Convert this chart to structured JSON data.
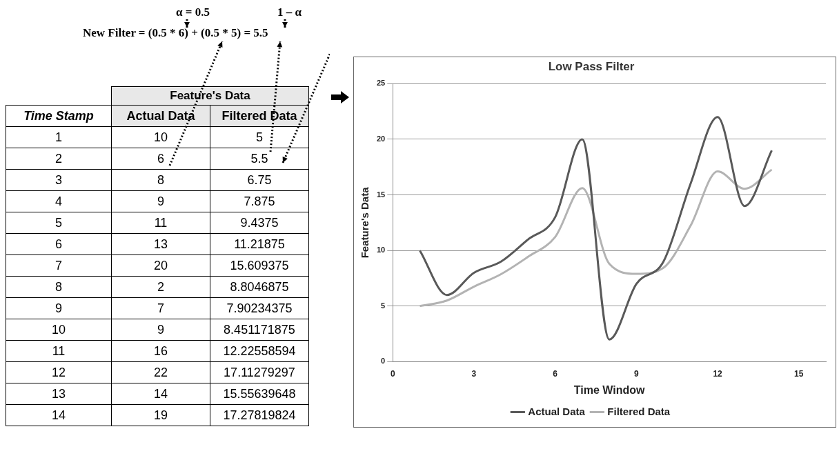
{
  "chart_data": [
    {
      "type": "heatmap",
      "title": "Feature's Data",
      "ylabel": "Time Stamp",
      "categories": [
        "Actual Data",
        "Filtered Data"
      ],
      "y_categories": [
        "1",
        "2",
        "3",
        "4",
        "5",
        "6",
        "7",
        "8",
        "9",
        "10",
        "11",
        "12",
        "13",
        "14"
      ],
      "cells": [
        [
          10,
          5
        ],
        [
          6,
          5.5
        ],
        [
          8,
          6.75
        ],
        [
          9,
          7.875
        ],
        [
          11,
          9.4375
        ],
        [
          13,
          11.21875
        ],
        [
          20,
          15.609375
        ],
        [
          2,
          8.8046875
        ],
        [
          7,
          7.90234375
        ],
        [
          9,
          8.451171875
        ],
        [
          16,
          12.22558594
        ],
        [
          22,
          17.11279297
        ],
        [
          14,
          15.55639648
        ],
        [
          19,
          17.27819824
        ]
      ],
      "data_labels": true,
      "annotations": [
        "α = 0.5",
        "1 – α",
        "New Filter = (0.5 * 6) + (0.5 * 5) = 5.5"
      ]
    },
    {
      "type": "line",
      "title": "Low Pass Filter",
      "xlabel": "Time Window",
      "ylabel": "Feature's Data",
      "x": [
        1,
        2,
        3,
        4,
        5,
        6,
        7,
        8,
        9,
        10,
        11,
        12,
        13,
        14
      ],
      "series": [
        {
          "name": "Actual Data",
          "color": "#595959",
          "values": [
            10,
            6,
            8,
            9,
            11,
            13,
            20,
            2,
            7,
            9,
            16,
            22,
            14,
            19
          ]
        },
        {
          "name": "Filtered Data",
          "color": "#b3b3b3",
          "values": [
            5,
            5.5,
            6.75,
            7.875,
            9.4375,
            11.21875,
            15.609375,
            8.8046875,
            7.90234375,
            8.451171875,
            12.22558594,
            17.11279297,
            15.55639648,
            17.27819824
          ]
        }
      ],
      "xlim": [
        0,
        16
      ],
      "xticks": [
        0,
        3,
        6,
        9,
        12,
        15
      ],
      "ylim": [
        0,
        25
      ],
      "yticks": [
        0,
        5,
        10,
        15,
        20,
        25
      ],
      "grid": "y",
      "legend": "bottom"
    }
  ]
}
